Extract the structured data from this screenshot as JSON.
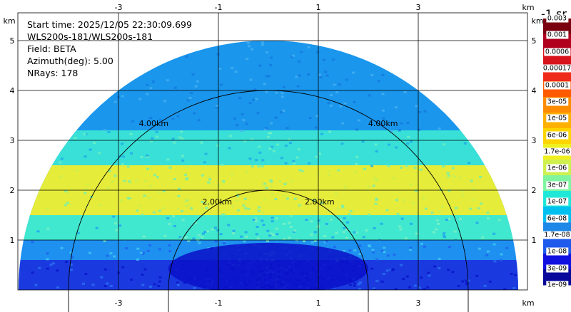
{
  "info": {
    "start_time": "Start time: 2025/12/05 22:30:09.699",
    "instrument": "WLS200s-181/WLS200s-181",
    "field": "Field: BETA",
    "azimuth": "Azimuth(deg): 5.00",
    "nrays": "NRays: 178"
  },
  "chart_data": {
    "type": "heatmap",
    "subtype": "RHI lidar scan (range-height)",
    "x_axis": {
      "ticks": [
        -3,
        -1,
        1,
        3
      ],
      "unit": "km",
      "range": [
        -5.3,
        5.0
      ]
    },
    "y_axis": {
      "ticks": [
        1,
        2,
        3,
        4,
        5
      ],
      "unit": "km",
      "range": [
        0,
        5.5
      ]
    },
    "range_rings": [
      {
        "range_km": 2,
        "label": "2.00km"
      },
      {
        "range_km": 4,
        "label": "4.00km"
      }
    ],
    "max_range_km": 5.0,
    "grid": true,
    "colorbar": {
      "title": "-1 sr",
      "labels": [
        "0.003",
        "0.001",
        "0.0006",
        "0.00017",
        "0.0001",
        "3e-05",
        "1e-05",
        "6e-06",
        "1.7e-06",
        "1e-06",
        "3e-07",
        "1e-07",
        "6e-08",
        "1.7e-08",
        "1e-08",
        "3e-09",
        "1e-09"
      ],
      "colors": [
        "#7a0010",
        "#b0001e",
        "#d8141c",
        "#ee2a1a",
        "#ff5a00",
        "#ff8c00",
        "#ffb000",
        "#ffd500",
        "#f0f020",
        "#d0f050",
        "#7ff5a0",
        "#20e8d8",
        "#00c0f0",
        "#1e88e8",
        "#1e5aec",
        "#1010e0",
        "#08089a"
      ]
    },
    "layers": [
      {
        "height_km": [
          0.0,
          0.6
        ],
        "level": "3e-09 to 1e-08",
        "color": "#1a3ae0"
      },
      {
        "height_km": [
          0.6,
          1.0
        ],
        "level": "1e-08 to 1e-07",
        "color": "#1e90f0"
      },
      {
        "height_km": [
          1.0,
          1.5
        ],
        "level": "1e-07 to 3e-07",
        "color": "#40e8d0"
      },
      {
        "height_km": [
          1.5,
          2.5
        ],
        "level": "3e-07 to 1e-06",
        "color": "#e6ec3a"
      },
      {
        "height_km": [
          2.5,
          3.2
        ],
        "level": "1e-07 to 3e-07",
        "color": "#38e0d8"
      },
      {
        "height_km": [
          3.2,
          5.0
        ],
        "level": "1.7e-08 to 6e-08",
        "color": "#1a96ec"
      }
    ],
    "colors": {
      "background": "#ffffff",
      "grid": "#000000"
    }
  }
}
